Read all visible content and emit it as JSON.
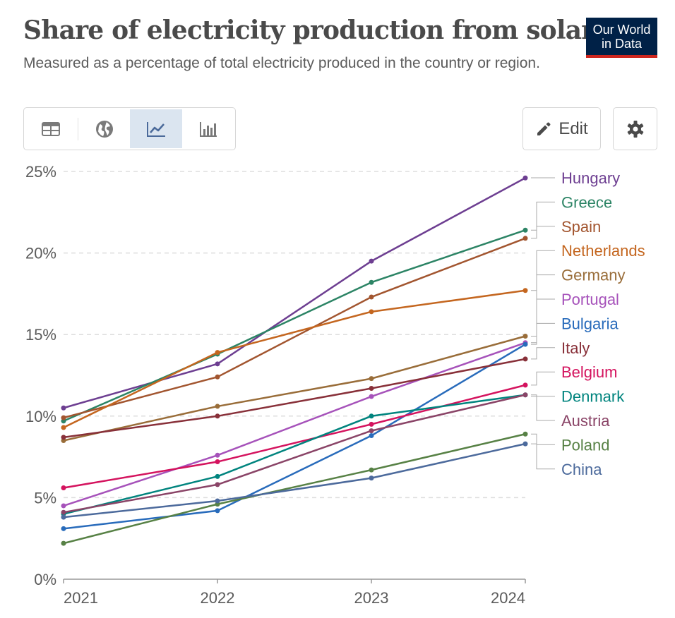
{
  "header": {
    "title": "Share of electricity production from solar",
    "subtitle": "Measured as a percentage of total electricity produced in the country or region.",
    "logo_line1": "Our World",
    "logo_line2": "in Data"
  },
  "toolbar": {
    "tabs": [
      {
        "name": "table",
        "icon": "table-icon",
        "active": false
      },
      {
        "name": "map",
        "icon": "globe-icon",
        "active": false
      },
      {
        "name": "chart",
        "icon": "line-chart-icon",
        "active": true
      },
      {
        "name": "bar",
        "icon": "bar-chart-icon",
        "active": false
      }
    ],
    "edit_label": "Edit",
    "edit_icon": "pencil-icon",
    "settings_icon": "gear-icon"
  },
  "chart_data": {
    "type": "line",
    "title": "Share of electricity production from solar",
    "x": [
      "2021",
      "2022",
      "2023",
      "2024"
    ],
    "ylim": [
      0,
      25
    ],
    "y_ticks": [
      0,
      5,
      10,
      15,
      20,
      25
    ],
    "y_tick_labels": [
      "0%",
      "5%",
      "10%",
      "15%",
      "20%",
      "25%"
    ],
    "grid": true,
    "legend_placement": "right",
    "series": [
      {
        "name": "Hungary",
        "color": "#6d3e91",
        "values": [
          10.5,
          13.2,
          19.5,
          24.6
        ]
      },
      {
        "name": "Greece",
        "color": "#2c8465",
        "values": [
          9.7,
          13.8,
          18.2,
          21.4
        ]
      },
      {
        "name": "Spain",
        "color": "#a2552f",
        "values": [
          9.9,
          12.4,
          17.3,
          20.9
        ]
      },
      {
        "name": "Netherlands",
        "color": "#c4661f",
        "values": [
          9.3,
          13.9,
          16.4,
          17.7
        ]
      },
      {
        "name": "Germany",
        "color": "#996d39",
        "values": [
          8.5,
          10.6,
          12.3,
          14.9
        ]
      },
      {
        "name": "Portugal",
        "color": "#a652ba",
        "values": [
          4.5,
          7.6,
          11.2,
          14.5
        ]
      },
      {
        "name": "Bulgaria",
        "color": "#286bbb",
        "values": [
          3.1,
          4.2,
          8.8,
          14.4
        ]
      },
      {
        "name": "Italy",
        "color": "#883039",
        "values": [
          8.7,
          10.0,
          11.7,
          13.5
        ]
      },
      {
        "name": "Belgium",
        "color": "#d4135e",
        "values": [
          5.6,
          7.2,
          9.5,
          11.9
        ]
      },
      {
        "name": "Denmark",
        "color": "#00847e",
        "values": [
          4.0,
          6.3,
          10.0,
          11.3
        ]
      },
      {
        "name": "Austria",
        "color": "#8a4467",
        "values": [
          4.1,
          5.8,
          9.1,
          11.3
        ]
      },
      {
        "name": "Poland",
        "color": "#578145",
        "values": [
          2.2,
          4.6,
          6.7,
          8.9
        ]
      },
      {
        "name": "China",
        "color": "#4c6a9c",
        "values": [
          3.8,
          4.8,
          6.2,
          8.3
        ]
      }
    ]
  }
}
